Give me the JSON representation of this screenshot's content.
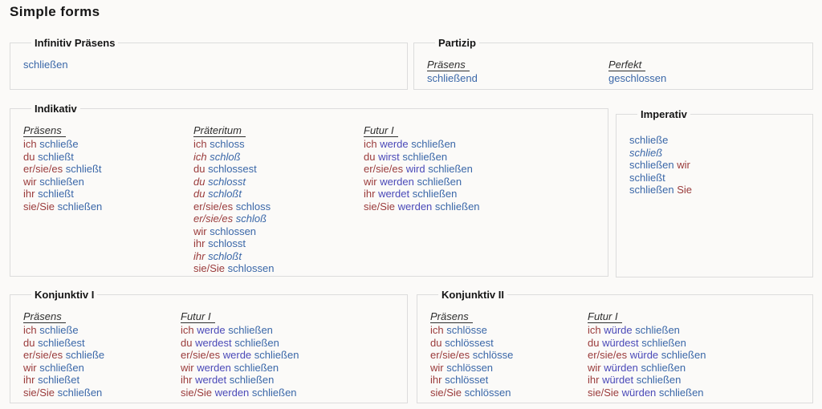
{
  "page": {
    "title": "Simple forms"
  },
  "colors": {
    "pronoun": "#9a3b3b",
    "verb": "#3a67a8",
    "aux": "#4a49b8",
    "heading": "#2e2e2e",
    "legend": "#151515",
    "border": "#dcdcdc",
    "background": "#fbfaf8",
    "title": "#151515"
  },
  "sections": {
    "infinitiv": {
      "legend": "Infinitiv Präsens",
      "rows": [
        {
          "parts": [
            {
              "t": "schließen",
              "c": "v"
            }
          ]
        }
      ]
    },
    "partizip": {
      "legend": "Partizip",
      "columns": [
        {
          "heading": "Präsens",
          "rows": [
            {
              "parts": [
                {
                  "t": "schließend",
                  "c": "v"
                }
              ]
            }
          ]
        },
        {
          "heading": "Perfekt",
          "rows": [
            {
              "parts": [
                {
                  "t": "geschlossen",
                  "c": "v"
                }
              ]
            }
          ]
        }
      ]
    },
    "indikativ": {
      "legend": "Indikativ",
      "columns": [
        {
          "heading": "Präsens",
          "rows": [
            {
              "parts": [
                {
                  "t": "ich",
                  "c": "p"
                },
                {
                  "t": "schließe",
                  "c": "v"
                }
              ]
            },
            {
              "parts": [
                {
                  "t": "du",
                  "c": "p"
                },
                {
                  "t": "schließt",
                  "c": "v"
                }
              ]
            },
            {
              "parts": [
                {
                  "t": "er/sie/es",
                  "c": "p"
                },
                {
                  "t": "schließt",
                  "c": "v"
                }
              ]
            },
            {
              "parts": [
                {
                  "t": "wir",
                  "c": "p"
                },
                {
                  "t": "schließen",
                  "c": "v"
                }
              ]
            },
            {
              "parts": [
                {
                  "t": "ihr",
                  "c": "p"
                },
                {
                  "t": "schließt",
                  "c": "v"
                }
              ]
            },
            {
              "parts": [
                {
                  "t": "sie/Sie",
                  "c": "p"
                },
                {
                  "t": "schließen",
                  "c": "v"
                }
              ]
            }
          ]
        },
        {
          "heading": "Präteritum",
          "rows": [
            {
              "parts": [
                {
                  "t": "ich",
                  "c": "p"
                },
                {
                  "t": "schloss",
                  "c": "v"
                }
              ]
            },
            {
              "italic": true,
              "parts": [
                {
                  "t": "ich",
                  "c": "p"
                },
                {
                  "t": "schloß",
                  "c": "v"
                }
              ]
            },
            {
              "parts": [
                {
                  "t": "du",
                  "c": "p"
                },
                {
                  "t": "schlossest",
                  "c": "v"
                }
              ]
            },
            {
              "italic": true,
              "parts": [
                {
                  "t": "du",
                  "c": "p"
                },
                {
                  "t": "schlosst",
                  "c": "v"
                }
              ]
            },
            {
              "italic": true,
              "parts": [
                {
                  "t": "du",
                  "c": "p"
                },
                {
                  "t": "schloßt",
                  "c": "v"
                }
              ]
            },
            {
              "parts": [
                {
                  "t": "er/sie/es",
                  "c": "p"
                },
                {
                  "t": "schloss",
                  "c": "v"
                }
              ]
            },
            {
              "italic": true,
              "parts": [
                {
                  "t": "er/sie/es",
                  "c": "p"
                },
                {
                  "t": "schloß",
                  "c": "v"
                }
              ]
            },
            {
              "parts": [
                {
                  "t": "wir",
                  "c": "p"
                },
                {
                  "t": "schlossen",
                  "c": "v"
                }
              ]
            },
            {
              "parts": [
                {
                  "t": "ihr",
                  "c": "p"
                },
                {
                  "t": "schlosst",
                  "c": "v"
                }
              ]
            },
            {
              "italic": true,
              "parts": [
                {
                  "t": "ihr",
                  "c": "p"
                },
                {
                  "t": "schloßt",
                  "c": "v"
                }
              ]
            },
            {
              "parts": [
                {
                  "t": "sie/Sie",
                  "c": "p"
                },
                {
                  "t": "schlossen",
                  "c": "v"
                }
              ]
            }
          ]
        },
        {
          "heading": "Futur I",
          "rows": [
            {
              "parts": [
                {
                  "t": "ich",
                  "c": "p"
                },
                {
                  "t": "werde",
                  "c": "a"
                },
                {
                  "t": "schließen",
                  "c": "v"
                }
              ]
            },
            {
              "parts": [
                {
                  "t": "du",
                  "c": "p"
                },
                {
                  "t": "wirst",
                  "c": "a"
                },
                {
                  "t": "schließen",
                  "c": "v"
                }
              ]
            },
            {
              "parts": [
                {
                  "t": "er/sie/es",
                  "c": "p"
                },
                {
                  "t": "wird",
                  "c": "a"
                },
                {
                  "t": "schließen",
                  "c": "v"
                }
              ]
            },
            {
              "parts": [
                {
                  "t": "wir",
                  "c": "p"
                },
                {
                  "t": "werden",
                  "c": "a"
                },
                {
                  "t": "schließen",
                  "c": "v"
                }
              ]
            },
            {
              "parts": [
                {
                  "t": "ihr",
                  "c": "p"
                },
                {
                  "t": "werdet",
                  "c": "a"
                },
                {
                  "t": "schließen",
                  "c": "v"
                }
              ]
            },
            {
              "parts": [
                {
                  "t": "sie/Sie",
                  "c": "p"
                },
                {
                  "t": "werden",
                  "c": "a"
                },
                {
                  "t": "schließen",
                  "c": "v"
                }
              ]
            }
          ]
        }
      ]
    },
    "imperativ": {
      "legend": "Imperativ",
      "rows": [
        {
          "parts": [
            {
              "t": "schließe",
              "c": "v"
            }
          ]
        },
        {
          "italic": true,
          "parts": [
            {
              "t": "schließ",
              "c": "v"
            }
          ]
        },
        {
          "parts": [
            {
              "t": "schließen",
              "c": "v"
            },
            {
              "t": "wir",
              "c": "p"
            }
          ]
        },
        {
          "parts": [
            {
              "t": "schließt",
              "c": "v"
            }
          ]
        },
        {
          "parts": [
            {
              "t": "schließen",
              "c": "v"
            },
            {
              "t": "Sie",
              "c": "p"
            }
          ]
        }
      ]
    },
    "konjunktiv1": {
      "legend": "Konjunktiv I",
      "columns": [
        {
          "heading": "Präsens",
          "rows": [
            {
              "parts": [
                {
                  "t": "ich",
                  "c": "p"
                },
                {
                  "t": "schließe",
                  "c": "v"
                }
              ]
            },
            {
              "parts": [
                {
                  "t": "du",
                  "c": "p"
                },
                {
                  "t": "schließest",
                  "c": "v"
                }
              ]
            },
            {
              "parts": [
                {
                  "t": "er/sie/es",
                  "c": "p"
                },
                {
                  "t": "schließe",
                  "c": "v"
                }
              ]
            },
            {
              "parts": [
                {
                  "t": "wir",
                  "c": "p"
                },
                {
                  "t": "schließen",
                  "c": "v"
                }
              ]
            },
            {
              "parts": [
                {
                  "t": "ihr",
                  "c": "p"
                },
                {
                  "t": "schließet",
                  "c": "v"
                }
              ]
            },
            {
              "parts": [
                {
                  "t": "sie/Sie",
                  "c": "p"
                },
                {
                  "t": "schließen",
                  "c": "v"
                }
              ]
            }
          ]
        },
        {
          "heading": "Futur I",
          "rows": [
            {
              "parts": [
                {
                  "t": "ich",
                  "c": "p"
                },
                {
                  "t": "werde",
                  "c": "a"
                },
                {
                  "t": "schließen",
                  "c": "v"
                }
              ]
            },
            {
              "parts": [
                {
                  "t": "du",
                  "c": "p"
                },
                {
                  "t": "werdest",
                  "c": "a"
                },
                {
                  "t": "schließen",
                  "c": "v"
                }
              ]
            },
            {
              "parts": [
                {
                  "t": "er/sie/es",
                  "c": "p"
                },
                {
                  "t": "werde",
                  "c": "a"
                },
                {
                  "t": "schließen",
                  "c": "v"
                }
              ]
            },
            {
              "parts": [
                {
                  "t": "wir",
                  "c": "p"
                },
                {
                  "t": "werden",
                  "c": "a"
                },
                {
                  "t": "schließen",
                  "c": "v"
                }
              ]
            },
            {
              "parts": [
                {
                  "t": "ihr",
                  "c": "p"
                },
                {
                  "t": "werdet",
                  "c": "a"
                },
                {
                  "t": "schließen",
                  "c": "v"
                }
              ]
            },
            {
              "parts": [
                {
                  "t": "sie/Sie",
                  "c": "p"
                },
                {
                  "t": "werden",
                  "c": "a"
                },
                {
                  "t": "schließen",
                  "c": "v"
                }
              ]
            }
          ]
        }
      ]
    },
    "konjunktiv2": {
      "legend": "Konjunktiv II",
      "columns": [
        {
          "heading": "Präsens",
          "rows": [
            {
              "parts": [
                {
                  "t": "ich",
                  "c": "p"
                },
                {
                  "t": "schlösse",
                  "c": "v"
                }
              ]
            },
            {
              "parts": [
                {
                  "t": "du",
                  "c": "p"
                },
                {
                  "t": "schlössest",
                  "c": "v"
                }
              ]
            },
            {
              "parts": [
                {
                  "t": "er/sie/es",
                  "c": "p"
                },
                {
                  "t": "schlösse",
                  "c": "v"
                }
              ]
            },
            {
              "parts": [
                {
                  "t": "wir",
                  "c": "p"
                },
                {
                  "t": "schlössen",
                  "c": "v"
                }
              ]
            },
            {
              "parts": [
                {
                  "t": "ihr",
                  "c": "p"
                },
                {
                  "t": "schlösset",
                  "c": "v"
                }
              ]
            },
            {
              "parts": [
                {
                  "t": "sie/Sie",
                  "c": "p"
                },
                {
                  "t": "schlössen",
                  "c": "v"
                }
              ]
            }
          ]
        },
        {
          "heading": "Futur I",
          "rows": [
            {
              "parts": [
                {
                  "t": "ich",
                  "c": "p"
                },
                {
                  "t": "würde",
                  "c": "a"
                },
                {
                  "t": "schließen",
                  "c": "v"
                }
              ]
            },
            {
              "parts": [
                {
                  "t": "du",
                  "c": "p"
                },
                {
                  "t": "würdest",
                  "c": "a"
                },
                {
                  "t": "schließen",
                  "c": "v"
                }
              ]
            },
            {
              "parts": [
                {
                  "t": "er/sie/es",
                  "c": "p"
                },
                {
                  "t": "würde",
                  "c": "a"
                },
                {
                  "t": "schließen",
                  "c": "v"
                }
              ]
            },
            {
              "parts": [
                {
                  "t": "wir",
                  "c": "p"
                },
                {
                  "t": "würden",
                  "c": "a"
                },
                {
                  "t": "schließen",
                  "c": "v"
                }
              ]
            },
            {
              "parts": [
                {
                  "t": "ihr",
                  "c": "p"
                },
                {
                  "t": "würdet",
                  "c": "a"
                },
                {
                  "t": "schließen",
                  "c": "v"
                }
              ]
            },
            {
              "parts": [
                {
                  "t": "sie/Sie",
                  "c": "p"
                },
                {
                  "t": "würden",
                  "c": "a"
                },
                {
                  "t": "schließen",
                  "c": "v"
                }
              ]
            }
          ]
        }
      ]
    }
  }
}
